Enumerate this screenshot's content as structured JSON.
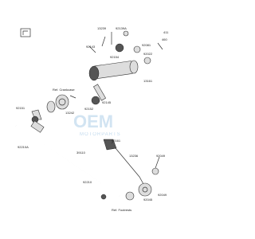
{
  "watermark": {
    "brand": "OEM",
    "sub": "MOTORPARTS"
  },
  "labels": [
    "13239",
    "92139A",
    "411",
    "92143",
    "92154",
    "92081",
    "460",
    "92022",
    "13161",
    "Ref. Crankcase",
    "92145",
    "92152",
    "13242",
    "92151",
    "92210A",
    "39110",
    "92161",
    "13236",
    "92049",
    "92210",
    "92049",
    "92045",
    "Ref. Footrests"
  ]
}
